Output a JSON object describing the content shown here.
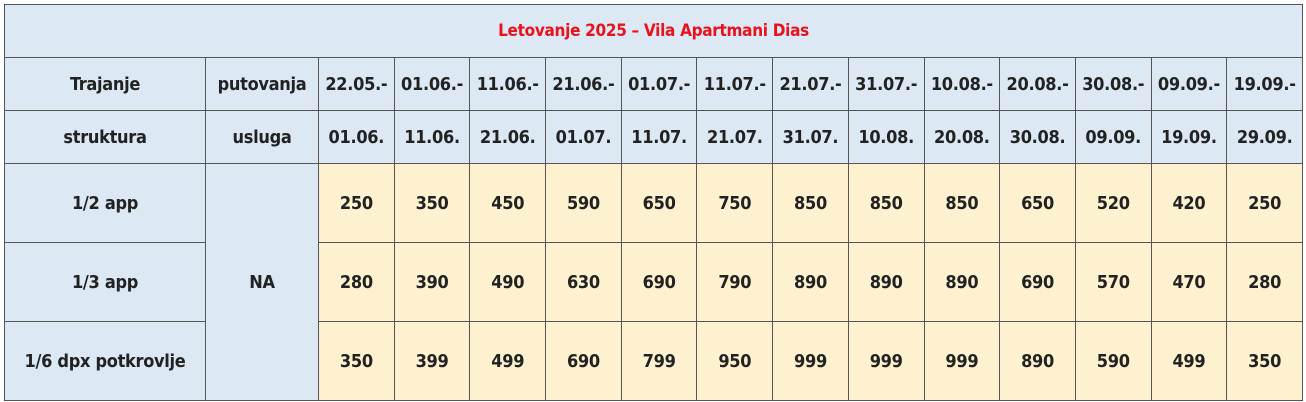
{
  "table": {
    "title": "Letovanje 2025 – Vila Apartmani Dias",
    "header_row1_col1": "Trajanje",
    "header_row1_col2": "putovanja",
    "header_row2_col1": "struktura",
    "header_row2_col2": "usluga",
    "periods_start": [
      "22.05.-",
      "01.06.-",
      "11.06.-",
      "21.06.-",
      "01.07.-",
      "11.07.-",
      "21.07.-",
      "31.07.-",
      "10.08.-",
      "20.08.-",
      "30.08.-",
      "09.09.-",
      "19.09.-"
    ],
    "periods_end": [
      "01.06.",
      "11.06.",
      "21.06.",
      "01.07.",
      "11.07.",
      "21.07.",
      "31.07.",
      "10.08.",
      "20.08.",
      "30.08.",
      "09.09.",
      "19.09.",
      "29.09."
    ],
    "service": "NA",
    "rows": [
      {
        "structure": "1/2 app",
        "prices": [
          "250",
          "350",
          "450",
          "590",
          "650",
          "750",
          "850",
          "850",
          "850",
          "650",
          "520",
          "420",
          "250"
        ]
      },
      {
        "structure": "1/3 app",
        "prices": [
          "280",
          "390",
          "490",
          "630",
          "690",
          "790",
          "890",
          "890",
          "890",
          "690",
          "570",
          "470",
          "280"
        ]
      },
      {
        "structure": "1/6 dpx potkrovlje",
        "prices": [
          "350",
          "399",
          "499",
          "690",
          "799",
          "950",
          "999",
          "999",
          "999",
          "890",
          "590",
          "499",
          "350"
        ]
      }
    ]
  },
  "colors": {
    "header_bg": "#dce8f4",
    "price_bg": "#fdf1cf",
    "title_text": "#e8121c",
    "border": "#555555"
  }
}
